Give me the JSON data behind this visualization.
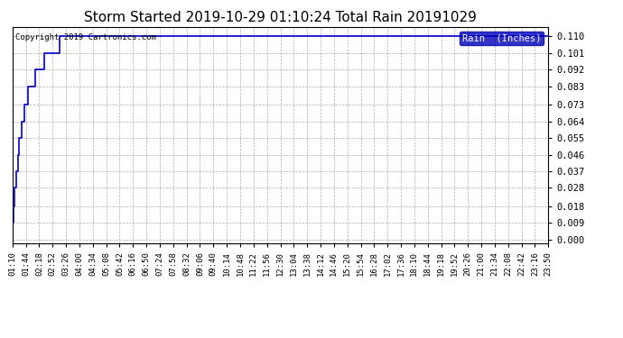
{
  "title": "Storm Started 2019-10-29 01:10:24 Total Rain 20191029",
  "copyright_text": "Copyright 2019 Cartronics.com",
  "legend_label": "Rain  (Inches)",
  "legend_bg_color": "#0000bb",
  "legend_text_color": "#ffffff",
  "line_color": "#0000cc",
  "background_color": "#ffffff",
  "grid_color": "#999999",
  "title_fontsize": 11,
  "ylim": [
    -0.002,
    0.115
  ],
  "yticks": [
    0.0,
    0.009,
    0.018,
    0.028,
    0.037,
    0.046,
    0.055,
    0.064,
    0.073,
    0.083,
    0.092,
    0.101,
    0.11
  ],
  "ytick_labels": [
    "0.000",
    "0.009",
    "0.018",
    "0.028",
    "0.037",
    "0.046",
    "0.055",
    "0.064",
    "0.073",
    "0.083",
    "0.092",
    "0.101",
    "0.110"
  ],
  "x_data": [
    0,
    1,
    2,
    3,
    5,
    7,
    9,
    11,
    14,
    17,
    20,
    23,
    26,
    30,
    35,
    40,
    48,
    57,
    70,
    80,
    100,
    120,
    150,
    200,
    250,
    300,
    400,
    500,
    600,
    700,
    800,
    900,
    1000,
    1100,
    1200,
    1300,
    1360
  ],
  "y_data": [
    0.0,
    0.009,
    0.018,
    0.018,
    0.028,
    0.028,
    0.037,
    0.037,
    0.046,
    0.055,
    0.055,
    0.064,
    0.064,
    0.073,
    0.073,
    0.083,
    0.083,
    0.092,
    0.092,
    0.101,
    0.101,
    0.11,
    0.11,
    0.11,
    0.11,
    0.11,
    0.11,
    0.11,
    0.11,
    0.11,
    0.11,
    0.11,
    0.11,
    0.11,
    0.11,
    0.11,
    0.11
  ],
  "xtick_labels": [
    "01:10",
    "01:44",
    "02:18",
    "02:52",
    "03:26",
    "04:00",
    "04:34",
    "05:08",
    "05:42",
    "06:16",
    "06:50",
    "07:24",
    "07:58",
    "08:32",
    "09:06",
    "09:40",
    "10:14",
    "10:48",
    "11:22",
    "11:56",
    "12:30",
    "13:04",
    "13:38",
    "14:12",
    "14:46",
    "15:20",
    "15:54",
    "16:28",
    "17:02",
    "17:36",
    "18:10",
    "18:44",
    "19:18",
    "19:52",
    "20:26",
    "21:00",
    "21:34",
    "22:08",
    "22:42",
    "23:16",
    "23:50"
  ],
  "num_xticks": 41,
  "xlim": [
    0,
    1360
  ]
}
